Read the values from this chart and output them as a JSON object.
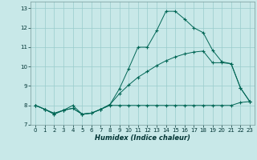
{
  "xlabel": "Humidex (Indice chaleur)",
  "bg_color": "#c8e8e8",
  "grid_color": "#99cccc",
  "line_color": "#006655",
  "xlim": [
    -0.5,
    23.5
  ],
  "ylim": [
    7.0,
    13.35
  ],
  "yticks": [
    7,
    8,
    9,
    10,
    11,
    12,
    13
  ],
  "xticks": [
    0,
    1,
    2,
    3,
    4,
    5,
    6,
    7,
    8,
    9,
    10,
    11,
    12,
    13,
    14,
    15,
    16,
    17,
    18,
    19,
    20,
    21,
    22,
    23
  ],
  "s1_x": [
    0,
    1,
    2,
    3,
    4,
    5,
    6,
    7,
    8,
    9,
    10,
    11,
    12,
    13,
    14,
    15,
    16,
    17,
    18,
    19,
    20,
    21,
    22,
    23
  ],
  "s1_y": [
    8.0,
    7.8,
    7.55,
    7.75,
    7.85,
    7.55,
    7.6,
    7.8,
    8.05,
    8.85,
    9.9,
    11.0,
    11.0,
    11.85,
    12.85,
    12.85,
    12.45,
    12.0,
    11.75,
    10.85,
    10.25,
    10.15,
    8.9,
    8.2
  ],
  "s2_x": [
    0,
    1,
    2,
    3,
    4,
    5,
    6,
    7,
    8,
    9,
    10,
    11,
    12,
    13,
    14,
    15,
    16,
    17,
    18,
    19,
    20,
    21,
    22,
    23
  ],
  "s2_y": [
    8.0,
    7.8,
    7.55,
    7.75,
    7.85,
    7.55,
    7.6,
    7.8,
    8.05,
    8.6,
    9.05,
    9.45,
    9.75,
    10.05,
    10.3,
    10.5,
    10.65,
    10.75,
    10.8,
    10.2,
    10.2,
    10.15,
    8.9,
    8.2
  ],
  "s3_x": [
    0,
    1,
    2,
    3,
    4,
    5,
    6,
    7,
    8,
    9,
    10,
    11,
    12,
    13,
    14,
    15,
    16,
    17,
    18,
    19,
    20,
    21,
    22,
    23
  ],
  "s3_y": [
    8.0,
    7.8,
    7.6,
    7.75,
    8.0,
    7.55,
    7.6,
    7.8,
    8.0,
    8.0,
    8.0,
    8.0,
    8.0,
    8.0,
    8.0,
    8.0,
    8.0,
    8.0,
    8.0,
    8.0,
    8.0,
    8.0,
    8.15,
    8.2
  ],
  "xlabel_fontsize": 6,
  "tick_fontsize": 5
}
